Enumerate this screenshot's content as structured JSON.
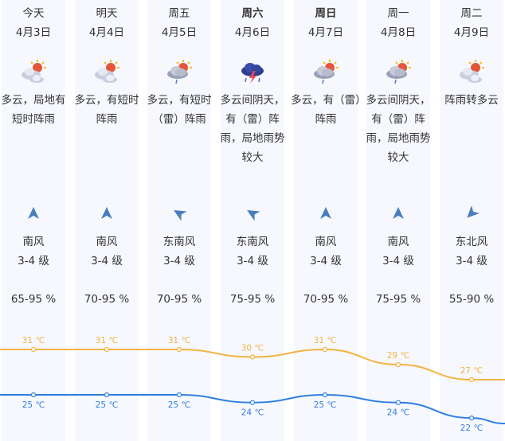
{
  "days": [
    {
      "day": "今天",
      "date": "4月3日",
      "icon": "partly-cloudy-icon",
      "desc": "多云，局地有短时阵雨",
      "wind_dir": "南风",
      "wind_deg": 0,
      "wind_level": "3-4 级",
      "humidity": "65-95 %",
      "high": "31 ℃",
      "low": "25 ℃",
      "bold": false
    },
    {
      "day": "明天",
      "date": "4月4日",
      "icon": "partly-cloudy-icon",
      "desc": "多云，有短时阵雨",
      "wind_dir": "南风",
      "wind_deg": 0,
      "wind_level": "3-4 级",
      "humidity": "70-95 %",
      "high": "31 ℃",
      "low": "25 ℃",
      "bold": false
    },
    {
      "day": "周五",
      "date": "4月5日",
      "icon": "cloudy-shower-icon",
      "desc": "多云，有短时（雷）阵雨",
      "wind_dir": "东南风",
      "wind_deg": -60,
      "wind_level": "3-4 级",
      "humidity": "70-95 %",
      "high": "31 ℃",
      "low": "25 ℃",
      "bold": false
    },
    {
      "day": "周六",
      "date": "4月6日",
      "icon": "thunderstorm-icon",
      "desc": "多云间阴天，有（雷）阵雨，局地雨势较大",
      "wind_dir": "东南风",
      "wind_deg": -60,
      "wind_level": "3-4 级",
      "humidity": "75-95 %",
      "high": "30 ℃",
      "low": "24 ℃",
      "bold": true
    },
    {
      "day": "周日",
      "date": "4月7日",
      "icon": "cloudy-shower-icon",
      "desc": "多云，有（雷）阵雨",
      "wind_dir": "南风",
      "wind_deg": 0,
      "wind_level": "3-4 级",
      "humidity": "70-95 %",
      "high": "31 ℃",
      "low": "25 ℃",
      "bold": true
    },
    {
      "day": "周一",
      "date": "4月8日",
      "icon": "cloudy-shower-icon",
      "desc": "多云间阴天，有（雷）阵雨，局地雨势较大",
      "wind_dir": "南风",
      "wind_deg": 0,
      "wind_level": "3-4 级",
      "humidity": "75-95 %",
      "high": "29 ℃",
      "low": "24 ℃",
      "bold": false
    },
    {
      "day": "周二",
      "date": "4月9日",
      "icon": "partly-cloudy-icon",
      "desc": "阵雨转多云",
      "wind_dir": "东北风",
      "wind_deg": -135,
      "wind_level": "3-4 级",
      "humidity": "55-90 %",
      "high": "27 ℃",
      "low": "22 ℃",
      "bold": false
    }
  ],
  "colors": {
    "high_line": "#f2b442",
    "low_line": "#2f7fde",
    "column_bg": "#f6f8fd",
    "arrow": "#4a7ebb"
  },
  "chart_data": {
    "type": "line",
    "categories": [
      "4月3日",
      "4月4日",
      "4月5日",
      "4月6日",
      "4月7日",
      "4月8日",
      "4月9日"
    ],
    "series": [
      {
        "name": "最高温度",
        "values": [
          31,
          31,
          31,
          30,
          31,
          29,
          27
        ],
        "unit": "℃"
      },
      {
        "name": "最低温度",
        "values": [
          25,
          25,
          25,
          24,
          25,
          24,
          22
        ],
        "unit": "℃"
      }
    ]
  }
}
